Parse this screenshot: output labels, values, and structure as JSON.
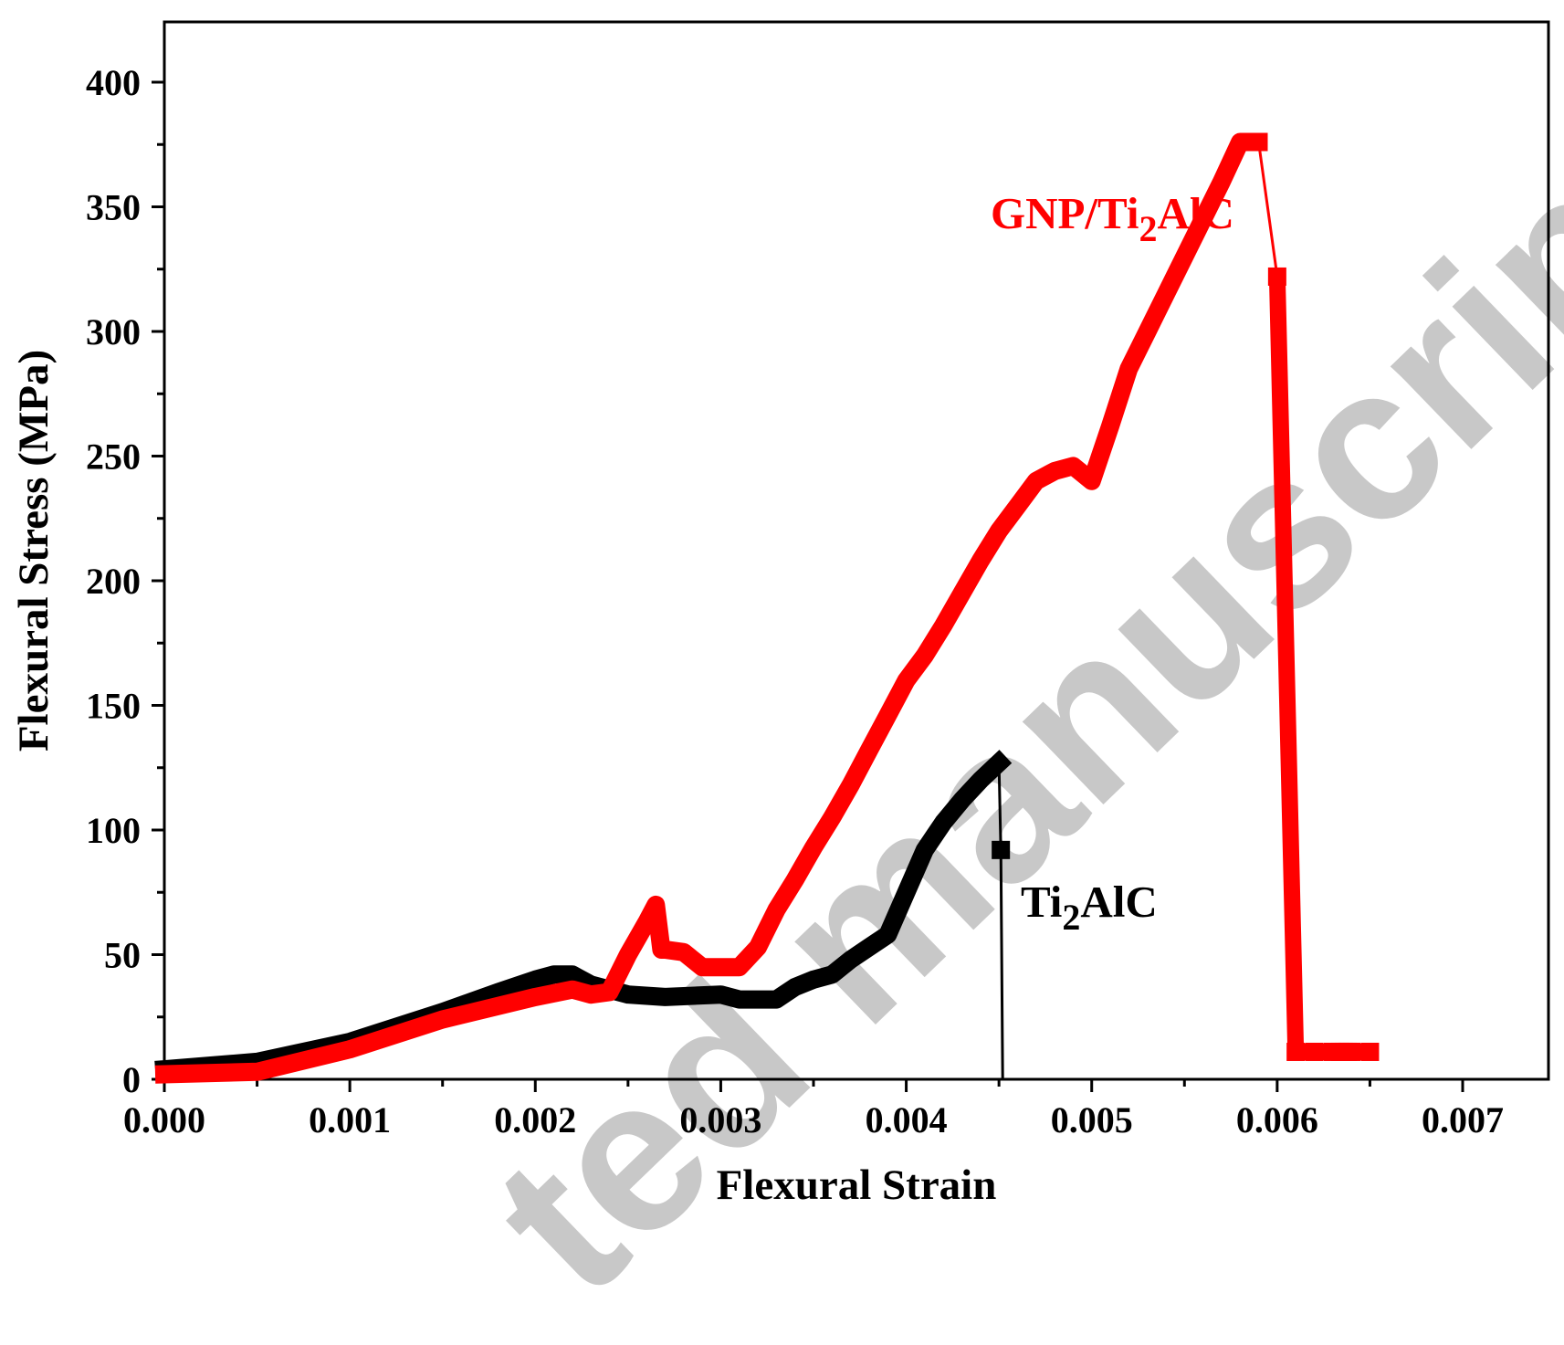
{
  "chart_data": {
    "type": "line",
    "xlabel": "Flexural Strain",
    "ylabel": "Flexural Stress (MPa)",
    "xlim": [
      0,
      0.0075
    ],
    "ylim": [
      0,
      425
    ],
    "xticks": [
      "0.000",
      "0.001",
      "0.002",
      "0.003",
      "0.004",
      "0.005",
      "0.006",
      "0.007"
    ],
    "yticks": [
      "0",
      "50",
      "100",
      "150",
      "200",
      "250",
      "300",
      "350",
      "400"
    ],
    "grid": false,
    "series": [
      {
        "name": "Ti2AlC",
        "label_main": "Ti",
        "label_sub": "2",
        "label_tail": "AlC",
        "color": "#000000",
        "x": [
          0.0,
          0.0005,
          0.001,
          0.0015,
          0.0018,
          0.002,
          0.0021,
          0.0022,
          0.0023,
          0.0025,
          0.0027,
          0.003,
          0.0031,
          0.0033,
          0.0034,
          0.0035,
          0.0036,
          0.0037,
          0.0038,
          0.0039,
          0.004,
          0.0041,
          0.0042,
          0.0043,
          0.0044,
          0.0045,
          0.00451,
          0.00452
        ],
        "y": [
          4,
          7,
          15,
          27,
          35,
          40,
          42,
          42,
          38,
          34,
          33,
          34,
          32,
          32,
          37,
          40,
          42,
          48,
          53,
          58,
          75,
          92,
          103,
          112,
          120,
          127,
          92,
          0
        ]
      },
      {
        "name": "GNP/Ti2AlC",
        "label_main": "GNP/Ti",
        "label_sub": "2",
        "label_tail": "AlC",
        "color": "#ff0000",
        "x": [
          0.0,
          0.0005,
          0.001,
          0.0015,
          0.002,
          0.0022,
          0.0023,
          0.0024,
          0.0025,
          0.0026,
          0.00265,
          0.00268,
          0.0027,
          0.0028,
          0.0029,
          0.003,
          0.0031,
          0.0032,
          0.0033,
          0.0034,
          0.0035,
          0.0036,
          0.0037,
          0.0038,
          0.0039,
          0.004,
          0.0041,
          0.0042,
          0.0043,
          0.0044,
          0.0045,
          0.0046,
          0.0047,
          0.0048,
          0.0049,
          0.005,
          0.0051,
          0.0052,
          0.0053,
          0.0054,
          0.0055,
          0.0056,
          0.0057,
          0.0058,
          0.0059,
          0.006,
          0.0061,
          0.0062,
          0.0063,
          0.00634,
          0.00636,
          0.00638,
          0.0064,
          0.0065
        ],
        "y": [
          2,
          3,
          12,
          24,
          33,
          36,
          34,
          35,
          50,
          63,
          70,
          52,
          52,
          51,
          45,
          45,
          45,
          53,
          68,
          80,
          93,
          105,
          118,
          132,
          146,
          160,
          170,
          182,
          195,
          208,
          220,
          230,
          240,
          244,
          246,
          240,
          262,
          285,
          300,
          315,
          330,
          345,
          360,
          376,
          376,
          322,
          11,
          11,
          11,
          11,
          11,
          11,
          11,
          11
        ]
      }
    ],
    "watermark": "ted manuscript"
  }
}
